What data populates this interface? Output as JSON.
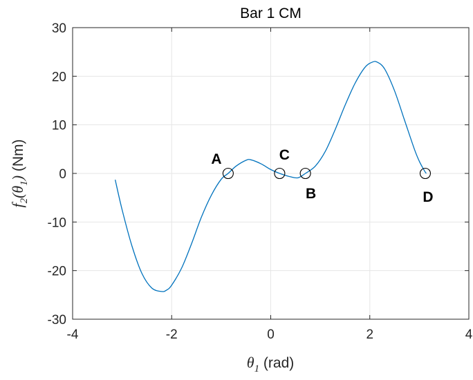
{
  "chart_data": {
    "type": "line",
    "title": "Bar 1 CM",
    "xlabel": {
      "sym": "θ",
      "sub": "1",
      "rest": " (rad)"
    },
    "ylabel": {
      "f": "f",
      "fsub": "2",
      "open": "(",
      "theta": "θ",
      "thsub": "1",
      "close": ")",
      "unit": " (Nm)"
    },
    "xlim": [
      -4,
      4
    ],
    "ylim": [
      -30,
      30
    ],
    "xticks": [
      -4,
      -2,
      0,
      2,
      4
    ],
    "xtick_labels": [
      "-4",
      "-2",
      "0",
      "2",
      "4"
    ],
    "yticks": [
      -30,
      -20,
      -10,
      0,
      10,
      20,
      30
    ],
    "ytick_labels": [
      "-30",
      "-20",
      "-10",
      "0",
      "10",
      "20",
      "30"
    ],
    "grid": true,
    "line_color": "#0072BD",
    "series": [
      {
        "x": [
          -3.14,
          -3.0,
          -2.8,
          -2.6,
          -2.4,
          -2.2,
          -2.1,
          -2.0,
          -1.8,
          -1.6,
          -1.4,
          -1.2,
          -1.0,
          -0.86,
          -0.7,
          -0.5,
          -0.4,
          -0.2,
          0.0,
          0.18,
          0.4,
          0.55,
          0.7,
          0.9,
          1.1,
          1.3,
          1.5,
          1.7,
          1.9,
          2.05,
          2.15,
          2.3,
          2.5,
          2.7,
          2.9,
          3.0,
          3.1,
          3.14
        ],
        "y": [
          -1.3,
          -7.5,
          -15.0,
          -20.6,
          -23.6,
          -24.3,
          -24.0,
          -23.0,
          -19.5,
          -14.5,
          -9.0,
          -4.5,
          -1.2,
          0.0,
          1.5,
          2.7,
          2.8,
          2.0,
          0.8,
          0.0,
          -0.7,
          -0.9,
          0.0,
          1.5,
          4.5,
          9.0,
          14.0,
          18.5,
          21.8,
          22.9,
          22.9,
          21.5,
          17.0,
          11.0,
          5.0,
          2.5,
          0.6,
          0.0
        ]
      }
    ],
    "markers": [
      {
        "label": "A",
        "x": -0.86,
        "y": 0
      },
      {
        "label": "C",
        "x": 0.18,
        "y": 0
      },
      {
        "label": "B",
        "x": 0.7,
        "y": 0
      },
      {
        "label": "D",
        "x": 3.12,
        "y": 0
      }
    ]
  }
}
